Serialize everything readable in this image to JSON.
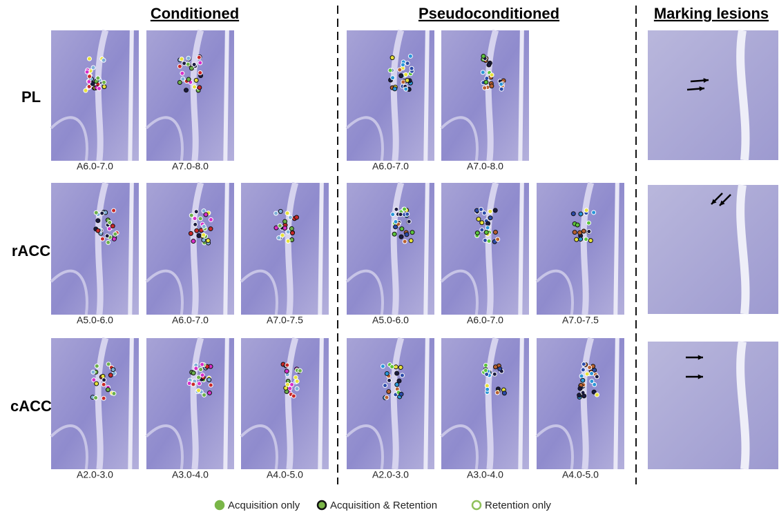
{
  "headers": [
    "Conditioned",
    "Pseudoconditioned",
    "Marking lesions"
  ],
  "rows": [
    {
      "label": "PL",
      "conditioned": [
        "A6.0-7.0",
        "A7.0-8.0"
      ],
      "pseudoconditioned": [
        "A6.0-7.0",
        "A7.0-8.0"
      ]
    },
    {
      "label": "rACC",
      "conditioned": [
        "A5.0-6.0",
        "A6.0-7.0",
        "A7.0-7.5"
      ],
      "pseudoconditioned": [
        "A5.0-6.0",
        "A6.0-7.0",
        "A7.0-7.5"
      ]
    },
    {
      "label": "cACC",
      "conditioned": [
        "A2.0-3.0",
        "A3.0-4.0",
        "A4.0-5.0"
      ],
      "pseudoconditioned": [
        "A2.0-3.0",
        "A3.0-4.0",
        "A4.0-5.0"
      ]
    }
  ],
  "legend": [
    "Acquisition only",
    "Acquisition & Retention",
    "Retention only"
  ]
}
